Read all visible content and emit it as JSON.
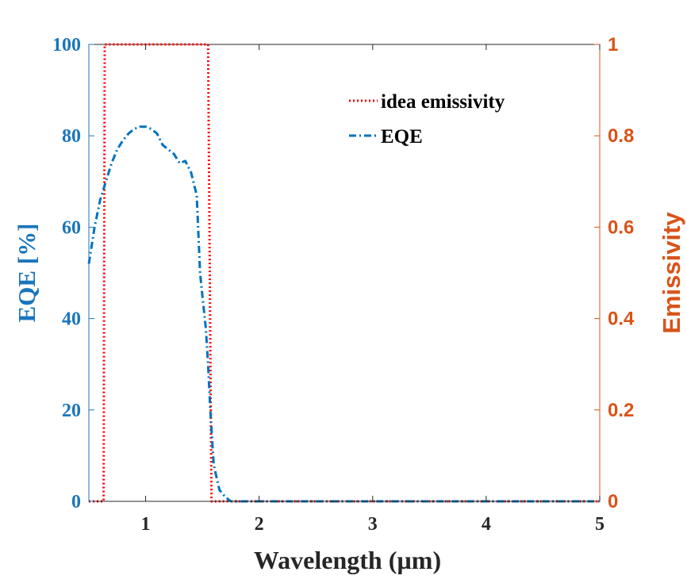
{
  "colors": {
    "left_axis": "#1a75bc",
    "right_axis": "#d95319",
    "emissivity_line": "#ff0000",
    "eqe_line": "#0072bd",
    "bottom_axis": "#262626",
    "frame": "#262626"
  },
  "chart_data": {
    "type": "line",
    "xlabel": "Wavelength (µm)",
    "ylabel_left": "EQE [%]",
    "ylabel_right": "Emissivity",
    "xlim": [
      0.5,
      5
    ],
    "ylim_left": [
      0,
      100
    ],
    "ylim_right": [
      0,
      1
    ],
    "x_ticks": [
      "1",
      "2",
      "3",
      "4",
      "5"
    ],
    "x_tick_values": [
      1,
      2,
      3,
      4,
      5
    ],
    "y_left_ticks": [
      "0",
      "20",
      "40",
      "60",
      "80",
      "100"
    ],
    "y_left_tick_values": [
      0,
      20,
      40,
      60,
      80,
      100
    ],
    "y_right_ticks": [
      "0",
      "0.2",
      "0.4",
      "0.6",
      "0.8",
      "1"
    ],
    "y_right_tick_values": [
      0,
      0.2,
      0.4,
      0.6,
      0.8,
      1
    ],
    "grid": false,
    "legend_position": "top-right",
    "series": [
      {
        "name": "idea emissivity",
        "axis": "right",
        "style": "dotted",
        "x": [
          0.5,
          0.63,
          0.64,
          1.55,
          1.58,
          5
        ],
        "y": [
          0,
          0,
          1,
          1,
          0,
          0
        ]
      },
      {
        "name": "EQE",
        "axis": "left",
        "style": "dashdot",
        "x": [
          0.5,
          0.55,
          0.6,
          0.65,
          0.7,
          0.75,
          0.8,
          0.85,
          0.9,
          0.95,
          1.0,
          1.05,
          1.1,
          1.15,
          1.2,
          1.25,
          1.3,
          1.35,
          1.4,
          1.45,
          1.48,
          1.5,
          1.53,
          1.55,
          1.57,
          1.6,
          1.65,
          1.7,
          1.75,
          2.0,
          3.0,
          4.0,
          5.0
        ],
        "y": [
          52,
          60,
          66,
          70,
          74,
          77,
          79,
          80.5,
          81.5,
          82,
          82,
          81.5,
          80.5,
          78,
          77,
          76,
          74,
          74.5,
          72,
          67,
          50,
          45,
          38,
          30,
          20,
          8,
          2.5,
          1.0,
          0,
          0,
          0,
          0,
          0
        ]
      }
    ]
  }
}
